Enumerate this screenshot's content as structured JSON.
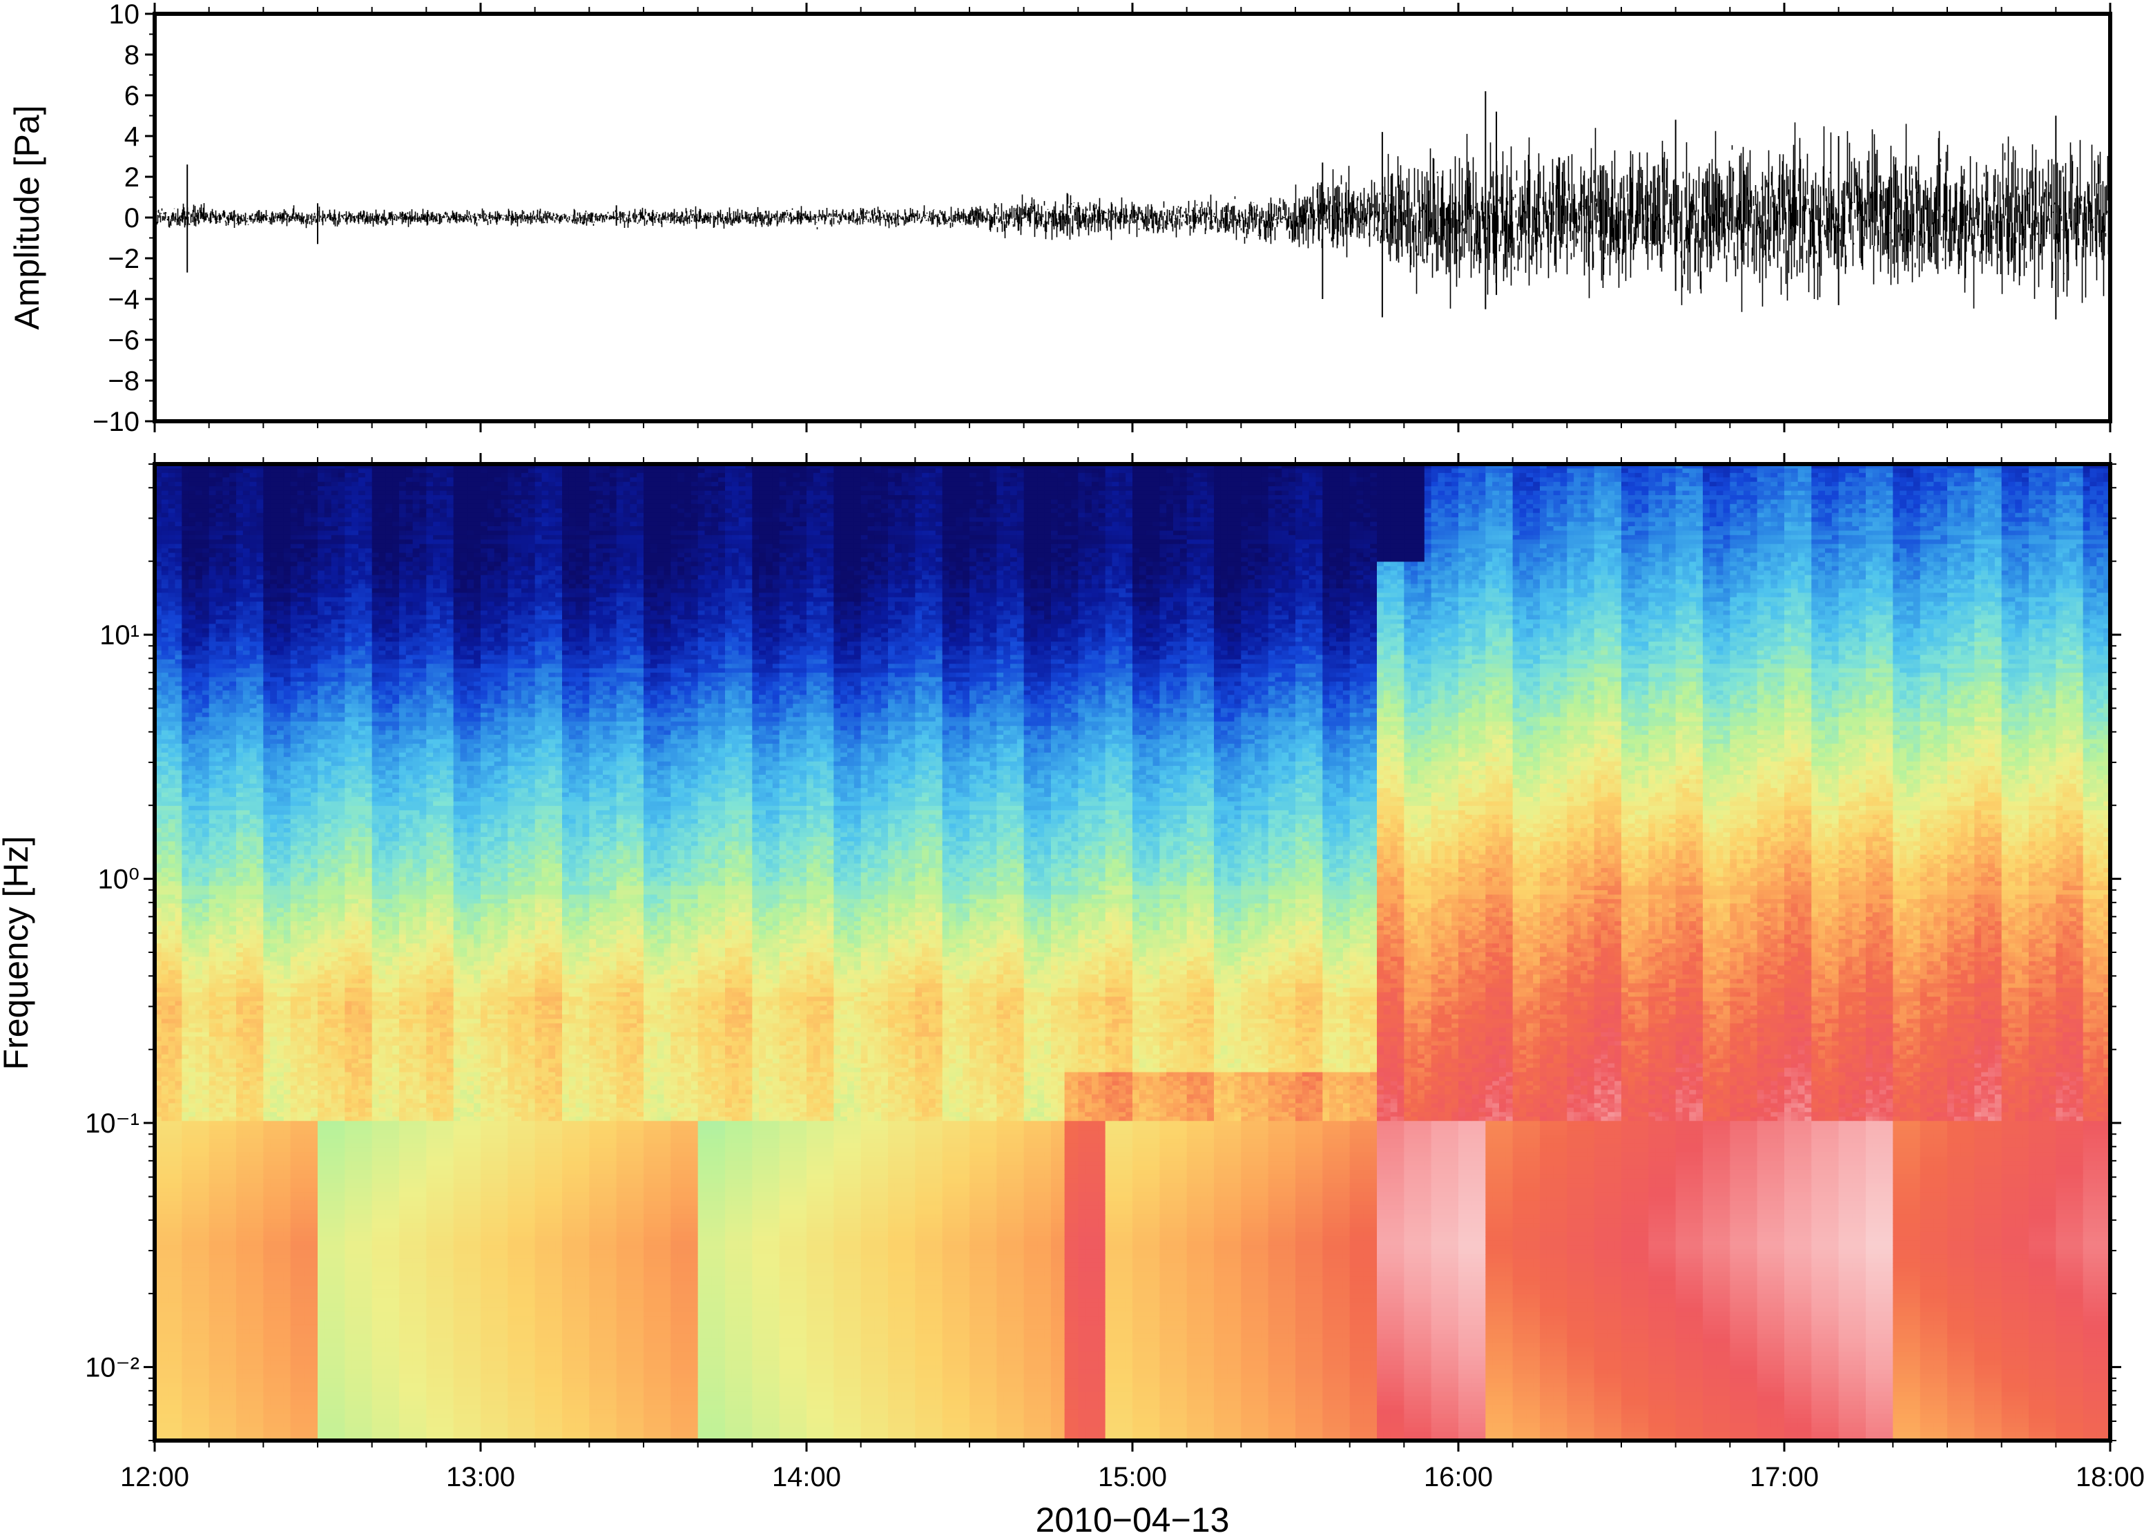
{
  "chart_data": [
    {
      "type": "line",
      "ylabel": "Amplitude [Pa]",
      "ylim": [
        -10,
        10
      ],
      "yticks": [
        "10",
        "8",
        "6",
        "4",
        "2",
        "0",
        "−2",
        "−4",
        "−6",
        "−8",
        "−10"
      ],
      "yticks_values": [
        10,
        8,
        6,
        4,
        2,
        0,
        -2,
        -4,
        -6,
        -8,
        -10
      ],
      "xlim": [
        "12:00",
        "18:00"
      ],
      "grid": false,
      "color": "#000000",
      "envelope": {
        "time_hours": [
          0.0,
          0.1,
          0.2,
          0.5,
          1.0,
          1.5,
          2.0,
          2.5,
          2.75,
          3.0,
          3.25,
          3.5,
          3.65,
          3.75,
          3.8,
          4.0,
          4.5,
          5.0,
          5.5,
          6.0
        ],
        "amplitude_pa": [
          0.4,
          0.5,
          0.3,
          0.3,
          0.25,
          0.3,
          0.3,
          0.35,
          0.8,
          0.5,
          0.6,
          1.0,
          1.5,
          1.2,
          2.4,
          2.6,
          2.4,
          2.6,
          2.4,
          2.5
        ]
      },
      "spikes": [
        {
          "time": "12:06",
          "max_pa": 2.6,
          "min_pa": -2.7
        },
        {
          "time": "12:30",
          "max_pa": 0.7,
          "min_pa": -1.3
        },
        {
          "time": "13:25",
          "max_pa": 0.6,
          "min_pa": -0.4
        },
        {
          "time": "14:48",
          "max_pa": 1.2,
          "min_pa": -0.9
        },
        {
          "time": "15:35",
          "max_pa": 2.7,
          "min_pa": -4.0
        },
        {
          "time": "15:46",
          "max_pa": 4.2,
          "min_pa": -4.9
        },
        {
          "time": "16:05",
          "max_pa": 6.2,
          "min_pa": -4.5
        },
        {
          "time": "16:07",
          "max_pa": 5.2,
          "min_pa": -3.8
        },
        {
          "time": "16:40",
          "max_pa": 4.8,
          "min_pa": -3.6
        },
        {
          "time": "17:10",
          "max_pa": 4.0,
          "min_pa": -4.3
        },
        {
          "time": "17:50",
          "max_pa": 5.0,
          "min_pa": -5.0
        }
      ]
    },
    {
      "type": "heatmap",
      "ylabel": "Frequency [Hz]",
      "xlabel": "2010−04−13",
      "yscale": "log",
      "ylim": [
        0.005,
        50
      ],
      "yticks": [
        "10⁻²",
        "10⁻¹",
        "10⁰",
        "10¹"
      ],
      "yticks_values": [
        0.01,
        0.1,
        1,
        10
      ],
      "x_ticks": [
        "12:00",
        "13:00",
        "14:00",
        "15:00",
        "16:00",
        "17:00",
        "18:00"
      ],
      "xlim": [
        "12:00",
        "18:00"
      ],
      "colormap": [
        "#0b0b6b",
        "#0a1a9e",
        "#1446d8",
        "#2f8fe6",
        "#4ec3ee",
        "#7fe3d6",
        "#b9f29a",
        "#eef08a",
        "#fcd36a",
        "#fca55a",
        "#f36b4f",
        "#ef5a60",
        "#f7a3a6",
        "#fadada"
      ],
      "features": [
        "12:00–15:45: strongest energy below 0.3 Hz; energy fades to dark blue above 10 Hz",
        "15:45: broadband onset, energy increases across all frequencies",
        "15:45–18:00: pink/red band 0.02–0.3 Hz, orange near 0.5 Hz, cyan-blue above 5 Hz",
        "low-frequency (<0.02 Hz) energy varies in vertical stripes of roughly 5-minute width"
      ]
    }
  ]
}
